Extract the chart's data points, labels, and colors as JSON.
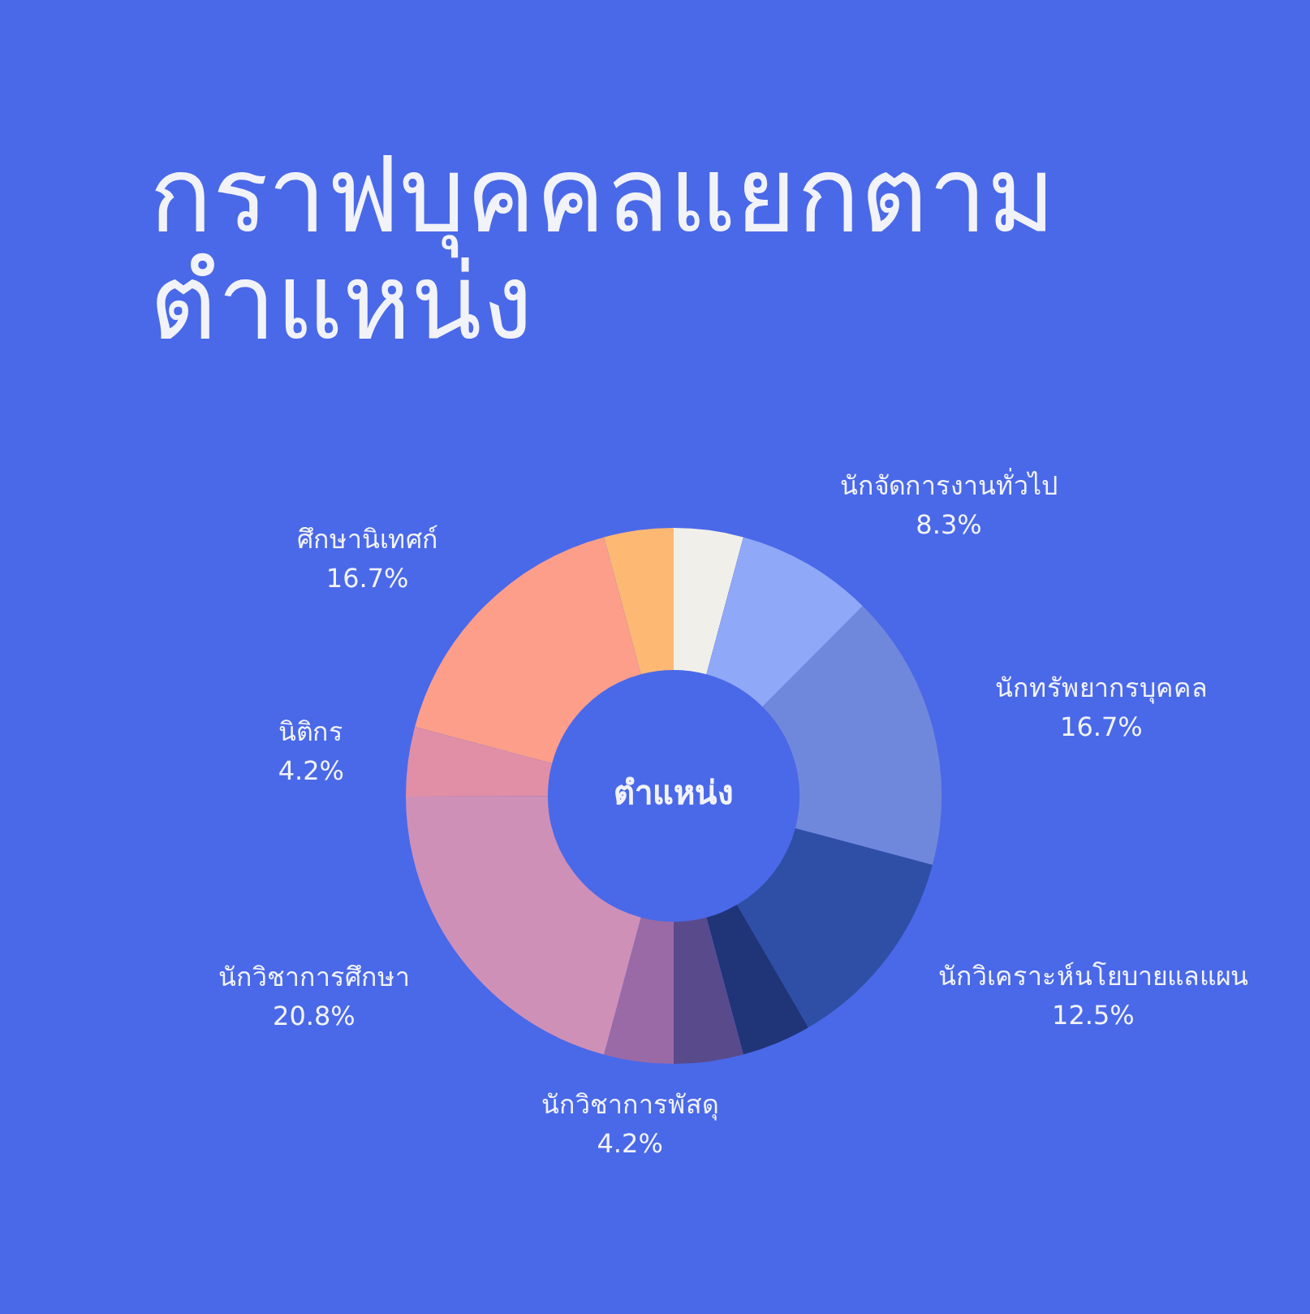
{
  "chart_data": {
    "type": "donut",
    "title": "กราฟบุคคลแยกตาม\nตำแหน่ง",
    "annotations": [
      "ตำแหน่ง"
    ],
    "categories": [
      null,
      "นักจัดการงานทั่วไป",
      "นักทรัพยากรบุคคล",
      "นักวิเคราะห์นโยบายแลแผน",
      null,
      null,
      "นักวิชาการพัสดุ",
      "นักวิชาการศึกษา",
      "นิติกร",
      "ศึกษานิเทศก์",
      null
    ],
    "values": [
      4.2,
      8.3,
      16.7,
      12.5,
      4.2,
      4.2,
      4.2,
      20.8,
      4.2,
      16.7,
      4.2
    ],
    "value_labels": [
      null,
      "8.3%",
      "16.7%",
      "12.5%",
      null,
      null,
      "4.2%",
      "20.8%",
      "4.2%",
      "16.7%",
      null
    ],
    "colors": [
      "#f1efe9",
      "#8fa8f7",
      "#7088dc",
      "#2f4fa6",
      "#1f3578",
      "#594a8c",
      "#9a6aa6",
      "#cf90b8",
      "#e08fa6",
      "#fd9e8b",
      "#fdb874"
    ],
    "legend": false
  }
}
